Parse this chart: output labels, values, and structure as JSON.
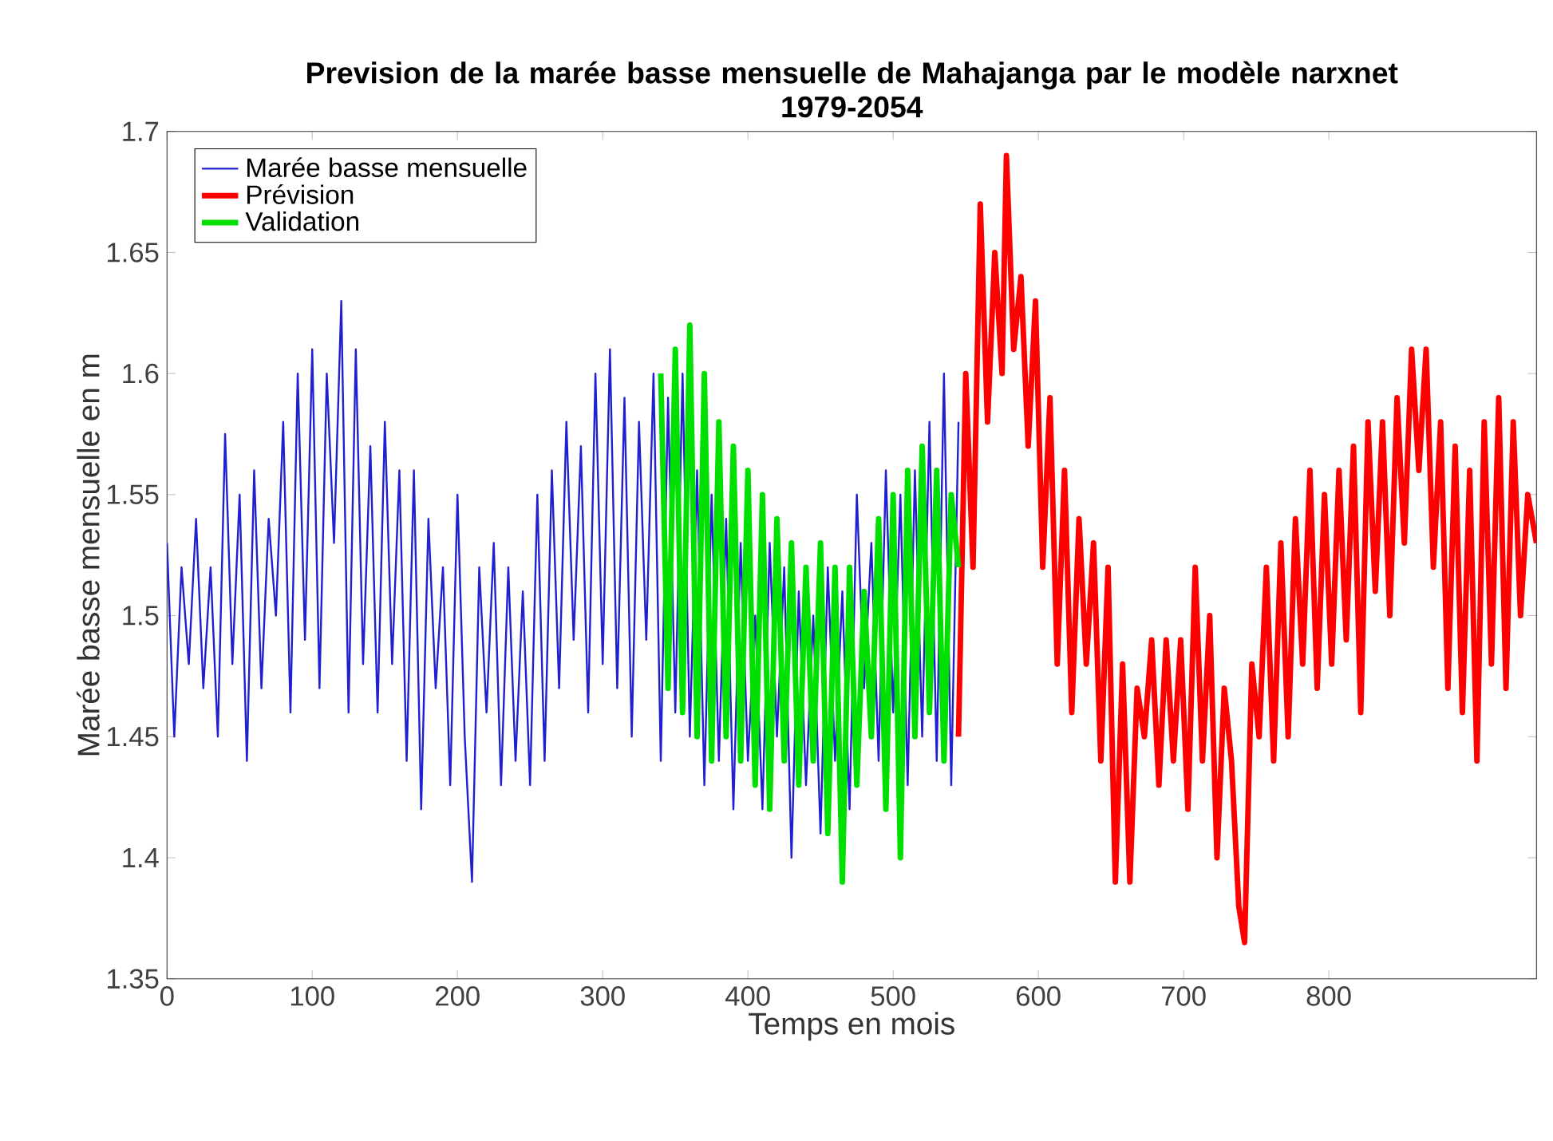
{
  "chart_data": {
    "type": "line",
    "title": "Prevision de la marée basse mensuelle de Mahajanga par le modèle narxnet",
    "subtitle": "1979-2054",
    "xlabel": "Temps en mois",
    "ylabel": "Marée basse mensuelle en m",
    "xlim": [
      0,
      943
    ],
    "ylim": [
      1.35,
      1.7
    ],
    "xticks": [
      0,
      100,
      200,
      300,
      400,
      500,
      600,
      700,
      800
    ],
    "yticks": [
      1.35,
      1.4,
      1.45,
      1.5,
      1.55,
      1.6,
      1.65,
      1.7
    ],
    "legend": "top left",
    "marker": "none",
    "line_style": "solid",
    "series": [
      {
        "name": "Marée basse mensuelle",
        "color": "#2020d0",
        "x": [
          0,
          5,
          10,
          15,
          20,
          25,
          30,
          35,
          40,
          45,
          50,
          55,
          60,
          65,
          70,
          75,
          80,
          85,
          90,
          95,
          100,
          105,
          110,
          115,
          120,
          125,
          130,
          135,
          140,
          145,
          150,
          155,
          160,
          165,
          170,
          175,
          180,
          185,
          190,
          195,
          200,
          205,
          210,
          215,
          220,
          225,
          230,
          235,
          240,
          245,
          250,
          255,
          260,
          265,
          270,
          275,
          280,
          285,
          290,
          295,
          300,
          305,
          310,
          315,
          320,
          325,
          330,
          335,
          340,
          345,
          350,
          355,
          360,
          365,
          370,
          375,
          380,
          385,
          390,
          395,
          400,
          405,
          410,
          415,
          420,
          425,
          430,
          435,
          440,
          445,
          450,
          455,
          460,
          465,
          470,
          475,
          480,
          485,
          490,
          495,
          500,
          505,
          510,
          515,
          520,
          525,
          530,
          535,
          540,
          545
        ],
        "values": [
          1.53,
          1.45,
          1.52,
          1.48,
          1.54,
          1.47,
          1.52,
          1.45,
          1.575,
          1.48,
          1.55,
          1.44,
          1.56,
          1.47,
          1.54,
          1.5,
          1.58,
          1.46,
          1.6,
          1.49,
          1.61,
          1.47,
          1.6,
          1.53,
          1.63,
          1.46,
          1.61,
          1.48,
          1.57,
          1.46,
          1.58,
          1.48,
          1.56,
          1.44,
          1.56,
          1.42,
          1.54,
          1.47,
          1.52,
          1.43,
          1.55,
          1.45,
          1.39,
          1.52,
          1.46,
          1.53,
          1.43,
          1.52,
          1.44,
          1.51,
          1.43,
          1.55,
          1.44,
          1.56,
          1.47,
          1.58,
          1.49,
          1.57,
          1.46,
          1.6,
          1.48,
          1.61,
          1.47,
          1.59,
          1.45,
          1.58,
          1.49,
          1.6,
          1.44,
          1.59,
          1.46,
          1.6,
          1.45,
          1.56,
          1.43,
          1.55,
          1.44,
          1.54,
          1.42,
          1.53,
          1.44,
          1.5,
          1.42,
          1.53,
          1.45,
          1.52,
          1.4,
          1.51,
          1.43,
          1.5,
          1.41,
          1.52,
          1.44,
          1.51,
          1.42,
          1.55,
          1.47,
          1.53,
          1.44,
          1.56,
          1.46,
          1.55,
          1.43,
          1.56,
          1.45,
          1.58,
          1.44,
          1.6,
          1.43,
          1.58
        ]
      },
      {
        "name": "Prévision",
        "color": "#ff0000",
        "x": [
          545,
          550,
          555,
          560,
          565,
          570,
          575,
          578,
          583,
          588,
          593,
          598,
          603,
          608,
          613,
          618,
          623,
          628,
          633,
          638,
          643,
          648,
          653,
          658,
          663,
          668,
          673,
          678,
          683,
          688,
          693,
          698,
          703,
          708,
          713,
          718,
          723,
          728,
          733,
          738,
          742,
          747,
          752,
          757,
          762,
          767,
          772,
          777,
          782,
          787,
          792,
          797,
          802,
          807,
          812,
          817,
          822,
          827,
          832,
          837,
          842,
          847,
          852,
          857,
          862,
          867,
          872,
          877,
          882,
          887,
          892,
          897,
          902,
          907,
          912,
          917,
          922,
          927,
          932,
          937,
          943
        ],
        "values": [
          1.45,
          1.6,
          1.52,
          1.67,
          1.58,
          1.65,
          1.6,
          1.69,
          1.61,
          1.64,
          1.57,
          1.63,
          1.52,
          1.59,
          1.48,
          1.56,
          1.46,
          1.54,
          1.48,
          1.53,
          1.44,
          1.52,
          1.39,
          1.48,
          1.39,
          1.47,
          1.45,
          1.49,
          1.43,
          1.49,
          1.44,
          1.49,
          1.42,
          1.52,
          1.44,
          1.5,
          1.4,
          1.47,
          1.44,
          1.38,
          1.365,
          1.48,
          1.45,
          1.52,
          1.44,
          1.53,
          1.45,
          1.54,
          1.48,
          1.56,
          1.47,
          1.55,
          1.48,
          1.56,
          1.49,
          1.57,
          1.46,
          1.58,
          1.51,
          1.58,
          1.5,
          1.59,
          1.53,
          1.61,
          1.56,
          1.61,
          1.52,
          1.58,
          1.47,
          1.57,
          1.46,
          1.56,
          1.44,
          1.58,
          1.48,
          1.59,
          1.47,
          1.58,
          1.5,
          1.55,
          1.53
        ]
      },
      {
        "name": "Validation",
        "color": "#00e000",
        "x": [
          340,
          345,
          350,
          355,
          360,
          365,
          370,
          375,
          380,
          385,
          390,
          395,
          400,
          405,
          410,
          415,
          420,
          425,
          430,
          435,
          440,
          445,
          450,
          455,
          460,
          465,
          470,
          475,
          480,
          485,
          490,
          495,
          500,
          505,
          510,
          515,
          520,
          525,
          530,
          535,
          540,
          545
        ],
        "values": [
          1.6,
          1.47,
          1.61,
          1.46,
          1.62,
          1.45,
          1.6,
          1.44,
          1.58,
          1.45,
          1.57,
          1.44,
          1.56,
          1.43,
          1.55,
          1.42,
          1.54,
          1.44,
          1.53,
          1.43,
          1.52,
          1.44,
          1.53,
          1.41,
          1.52,
          1.39,
          1.52,
          1.43,
          1.51,
          1.45,
          1.54,
          1.42,
          1.55,
          1.4,
          1.56,
          1.45,
          1.57,
          1.46,
          1.56,
          1.44,
          1.55,
          1.52
        ]
      }
    ]
  }
}
